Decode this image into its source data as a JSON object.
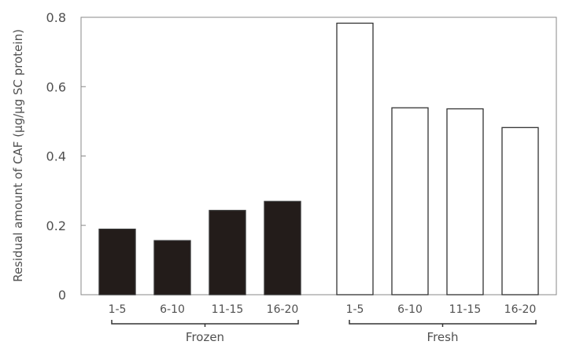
{
  "chart_data": {
    "type": "bar",
    "title": "",
    "xlabel": "",
    "ylabel": "Residual amount of CAF (µg/µg SC protein)",
    "ylim": [
      0,
      0.8
    ],
    "yticks": [
      "0",
      "0.2",
      "0.4",
      "0.6",
      "0.8"
    ],
    "grid": false,
    "groups": [
      {
        "name": "Frozen",
        "color": "#231c1a",
        "fill": "solid",
        "categories": [
          "1-5",
          "6-10",
          "11-15",
          "16-20"
        ],
        "values": [
          0.189,
          0.156,
          0.243,
          0.269
        ]
      },
      {
        "name": "Fresh",
        "color": "#ffffff",
        "fill": "open",
        "categories": [
          "1-5",
          "6-10",
          "11-15",
          "16-20"
        ],
        "values": [
          0.783,
          0.539,
          0.536,
          0.482
        ]
      }
    ]
  }
}
